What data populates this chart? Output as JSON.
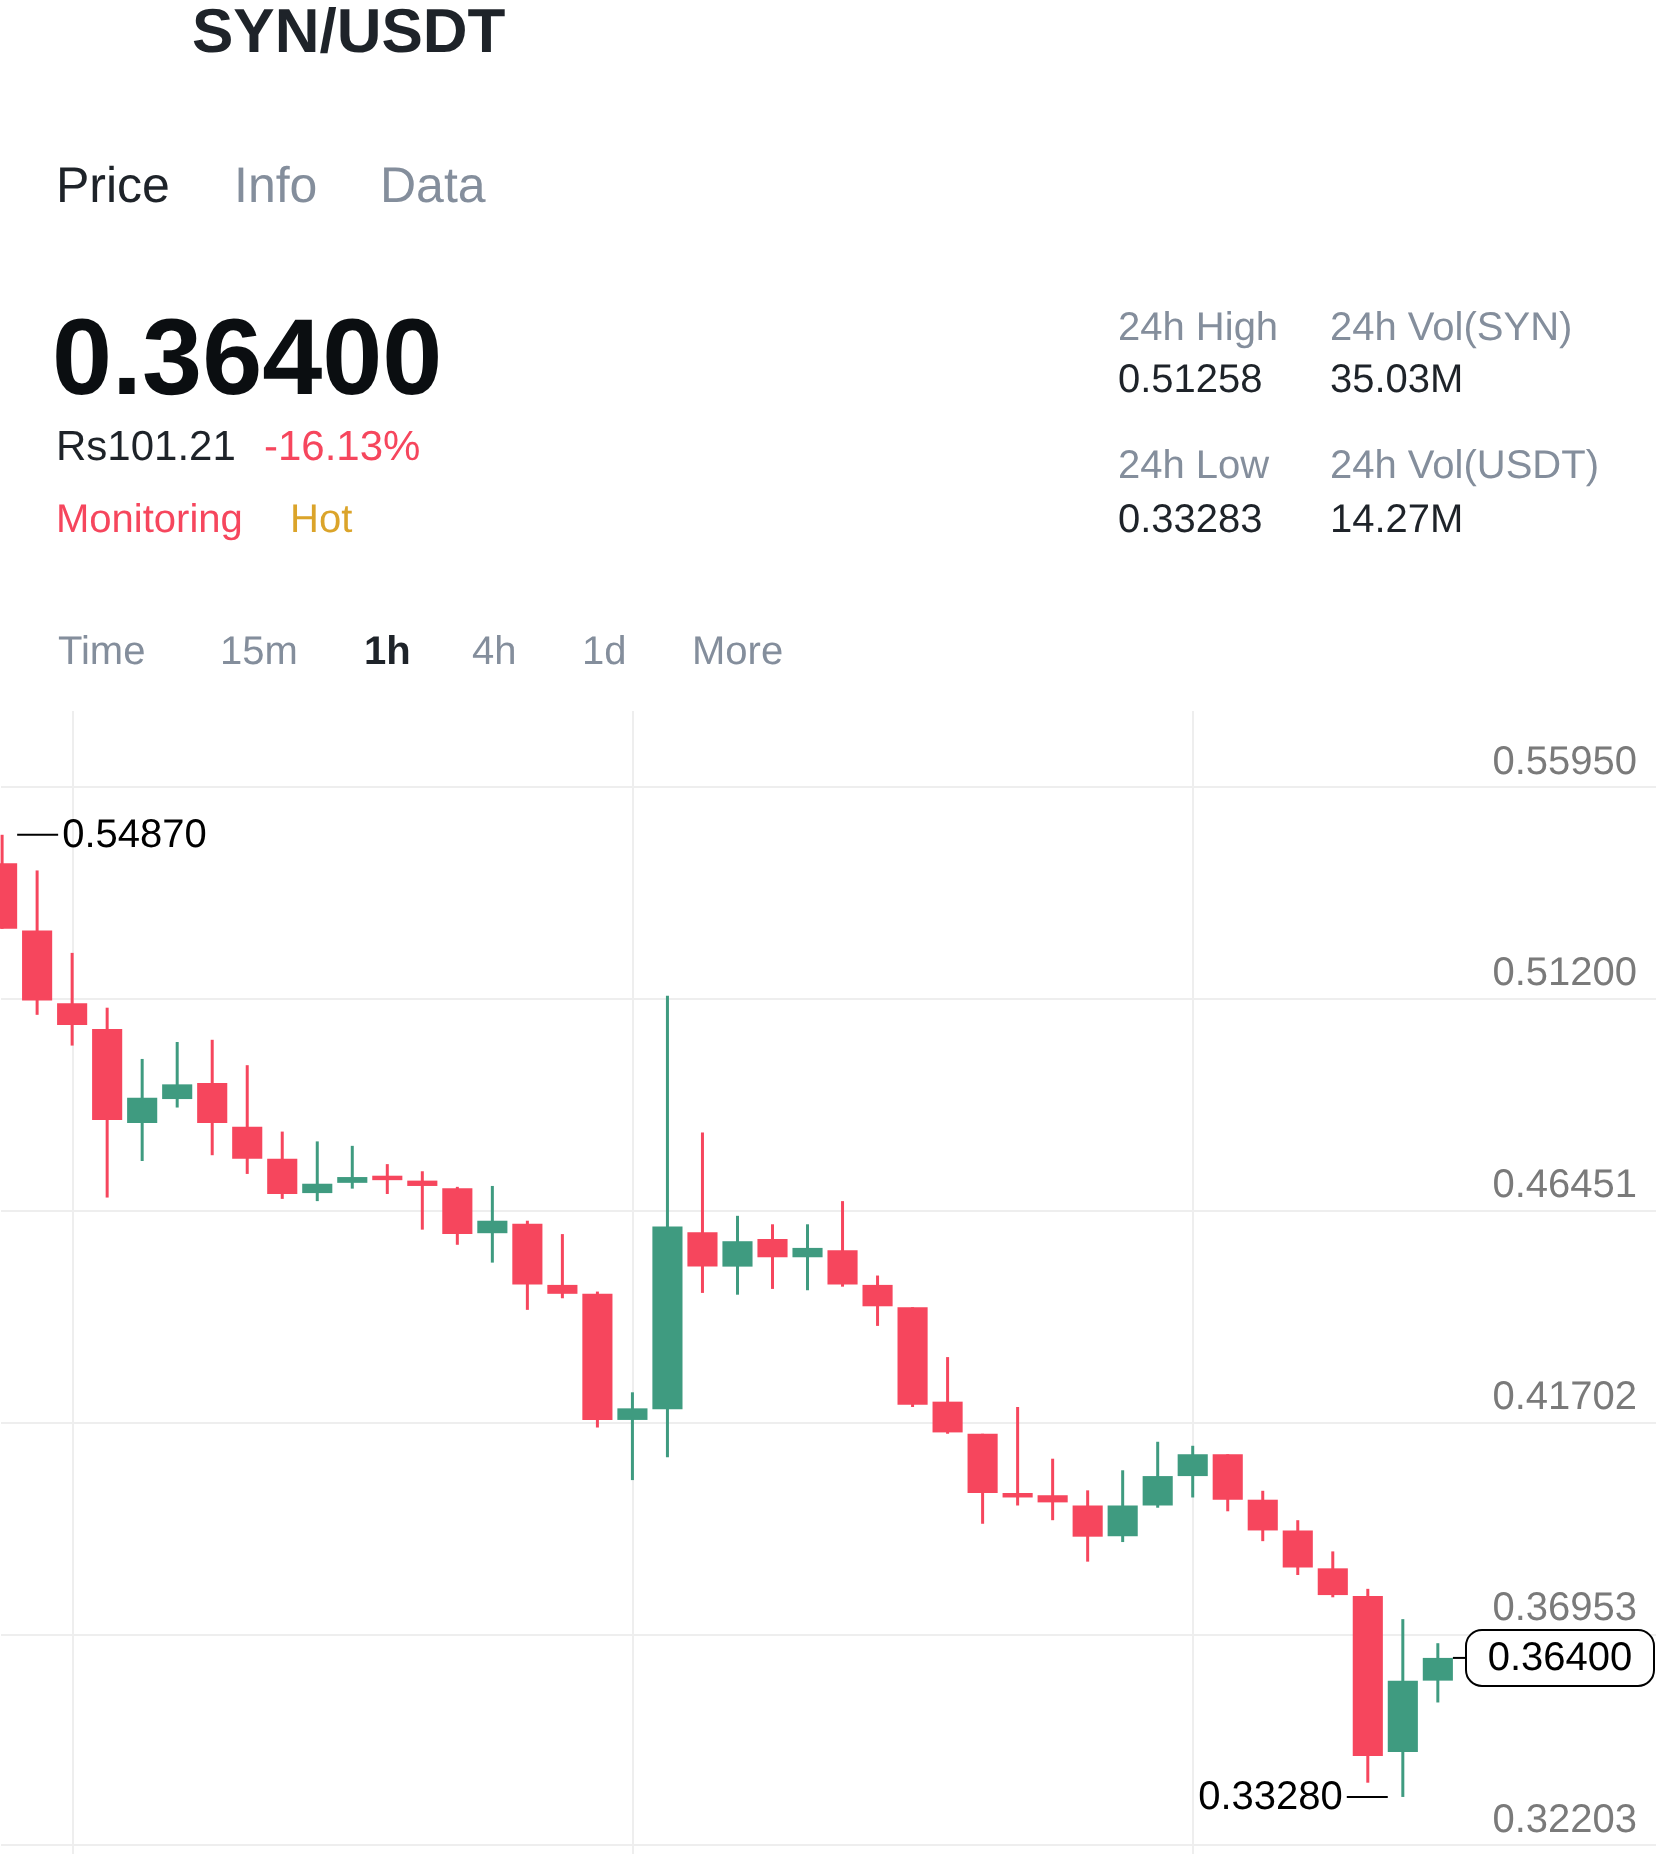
{
  "chart_data": [
    {
      "type": "other",
      "title": "SYN/USDT",
      "annotations": [
        "Price",
        "Info",
        "Data",
        "0.36400",
        "Rs101.21",
        "-16.13%",
        "Monitoring",
        "Hot",
        "24h High",
        "0.51258",
        "24h Vol(SYN)",
        "35.03M",
        "24h Low",
        "0.33283",
        "24h Vol(USDT)",
        "14.27M",
        "Time",
        "15m",
        "1h",
        "4h",
        "1d",
        "More"
      ]
    },
    {
      "type": "candlestick",
      "categories": [
        null,
        null,
        null,
        null,
        null,
        null,
        null,
        null,
        null,
        null,
        null,
        null,
        null,
        null,
        null,
        null,
        null,
        null,
        null,
        null,
        null,
        null,
        null,
        null,
        null,
        null,
        null,
        null,
        null,
        null,
        null,
        null,
        null,
        null,
        null,
        null,
        null,
        null,
        null,
        null,
        null,
        null
      ],
      "ohlc": [
        [
          0.5423,
          0.5487,
          0.5276,
          0.5276
        ],
        [
          0.5272,
          0.5407,
          0.5083,
          0.5115
        ],
        [
          0.5109,
          0.5222,
          0.5014,
          0.506
        ],
        [
          0.5051,
          0.5099,
          0.4673,
          0.4847
        ],
        [
          0.484,
          0.4984,
          0.4755,
          0.4897
        ],
        [
          0.4894,
          0.5022,
          0.4875,
          0.4927
        ],
        [
          0.493,
          0.5027,
          0.4768,
          0.484
        ],
        [
          0.4832,
          0.497,
          0.4726,
          0.476
        ],
        [
          0.476,
          0.4821,
          0.467,
          0.4681
        ],
        [
          0.4683,
          0.4799,
          0.4665,
          0.4704
        ],
        [
          0.4706,
          0.4789,
          0.4693,
          0.4719
        ],
        [
          0.4722,
          0.4748,
          0.4681,
          0.4712
        ],
        [
          0.4711,
          0.4732,
          0.4601,
          0.4699
        ],
        [
          0.4694,
          0.4697,
          0.4567,
          0.4591
        ],
        [
          0.4593,
          0.4699,
          0.4527,
          0.4621
        ],
        [
          0.4614,
          0.4621,
          0.4421,
          0.4478
        ],
        [
          0.4477,
          0.4591,
          0.4447,
          0.4457
        ],
        [
          0.4457,
          0.4462,
          0.4157,
          0.4174
        ],
        [
          0.4174,
          0.4236,
          0.4039,
          0.42
        ],
        [
          0.4198,
          0.5126,
          0.409,
          0.4608
        ],
        [
          0.4595,
          0.4819,
          0.4459,
          0.4518
        ],
        [
          0.4518,
          0.4632,
          0.4455,
          0.4575
        ],
        [
          0.458,
          0.4613,
          0.4468,
          0.4539
        ],
        [
          0.4539,
          0.4613,
          0.4465,
          0.456
        ],
        [
          0.4555,
          0.4665,
          0.4473,
          0.4478
        ],
        [
          0.4477,
          0.4498,
          0.4385,
          0.4429
        ],
        [
          0.4427,
          0.4427,
          0.4203,
          0.4208
        ],
        [
          0.4215,
          0.4315,
          0.4143,
          0.4146
        ],
        [
          0.4143,
          0.4143,
          0.3941,
          0.401
        ],
        [
          0.401,
          0.4203,
          0.3982,
          0.4
        ],
        [
          0.4005,
          0.4087,
          0.3949,
          0.3989
        ],
        [
          0.3982,
          0.4016,
          0.3856,
          0.3912
        ],
        [
          0.3913,
          0.4061,
          0.39,
          0.3982
        ],
        [
          0.3982,
          0.4125,
          0.3977,
          0.4048
        ],
        [
          0.4048,
          0.4116,
          0.4,
          0.4097
        ],
        [
          0.4097,
          0.4097,
          0.3969,
          0.3995
        ],
        [
          0.3995,
          0.4015,
          0.3902,
          0.3926
        ],
        [
          0.3926,
          0.3949,
          0.3826,
          0.3843
        ],
        [
          0.3841,
          0.3879,
          0.3776,
          0.3781
        ],
        [
          0.3779,
          0.3795,
          0.336,
          0.342
        ],
        [
          0.3429,
          0.3727,
          0.3328,
          0.3589
        ],
        [
          0.3589,
          0.3673,
          0.354,
          0.364
        ]
      ],
      "colors": [
        "#f6465d",
        "#f6465d",
        "#f6465d",
        "#f6465d",
        "#3f9b80",
        "#3f9b80",
        "#f6465d",
        "#f6465d",
        "#f6465d",
        "#3f9b80",
        "#3f9b80",
        "#f6465d",
        "#f6465d",
        "#f6465d",
        "#3f9b80",
        "#f6465d",
        "#f6465d",
        "#f6465d",
        "#3f9b80",
        "#3f9b80",
        "#f6465d",
        "#3f9b80",
        "#f6465d",
        "#3f9b80",
        "#f6465d",
        "#f6465d",
        "#f6465d",
        "#f6465d",
        "#f6465d",
        "#f6465d",
        "#f6465d",
        "#f6465d",
        "#3f9b80",
        "#3f9b80",
        "#3f9b80",
        "#f6465d",
        "#f6465d",
        "#f6465d",
        "#f6465d",
        "#f6465d",
        "#3f9b80",
        "#3f9b80"
      ],
      "ylim": [
        0.32,
        0.5767
      ],
      "yticks": [
        {
          "value": 0.5595,
          "label": "0.55950"
        },
        {
          "value": 0.512,
          "label": "0.51200"
        },
        0.46451,
        0.41702,
        0.36953,
        0.32203
      ],
      "grid": true,
      "tick_labels": "y",
      "annotations": [
        "0.54870",
        "0.33280",
        "0.36400"
      ]
    }
  ]
}
